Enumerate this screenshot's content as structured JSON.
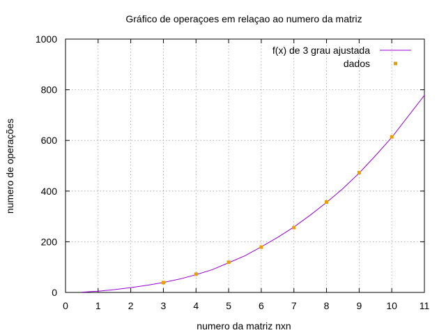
{
  "chart_data": {
    "type": "line",
    "title": "Gráfico de operaçoes em relaçao ao numero da matriz",
    "xlabel": "numero da matriz nxn",
    "ylabel": "numero de operações",
    "xlim": [
      0,
      11
    ],
    "ylim": [
      0,
      1000
    ],
    "x_ticks": [
      "0",
      "1",
      "2",
      "3",
      "4",
      "5",
      "6",
      "7",
      "8",
      "9",
      "10",
      "11"
    ],
    "y_ticks": [
      "0",
      "200",
      "400",
      "600",
      "800",
      "1000"
    ],
    "grid": true,
    "legend_position": "top-right",
    "series": [
      {
        "name": "f(x) de 3 grau ajustada",
        "style": "line",
        "color": "#9400d3",
        "x": [
          0.5,
          1,
          1.5,
          2,
          2.5,
          3,
          3.5,
          4,
          4.5,
          5,
          5.5,
          6,
          6.5,
          7,
          7.5,
          8,
          8.5,
          9,
          9.5,
          10,
          10.5,
          11
        ],
        "y": [
          1,
          5,
          11,
          19,
          28,
          39,
          53,
          70,
          90,
          117,
          145,
          180,
          217,
          258,
          305,
          355,
          410,
          471,
          540,
          612,
          695,
          778
        ]
      },
      {
        "name": "dados",
        "style": "points",
        "color": "#e69f00",
        "x": [
          3,
          4,
          5,
          6,
          7,
          8,
          9,
          10
        ],
        "y": [
          39,
          72,
          119,
          179,
          256,
          357,
          473,
          614
        ]
      }
    ]
  }
}
